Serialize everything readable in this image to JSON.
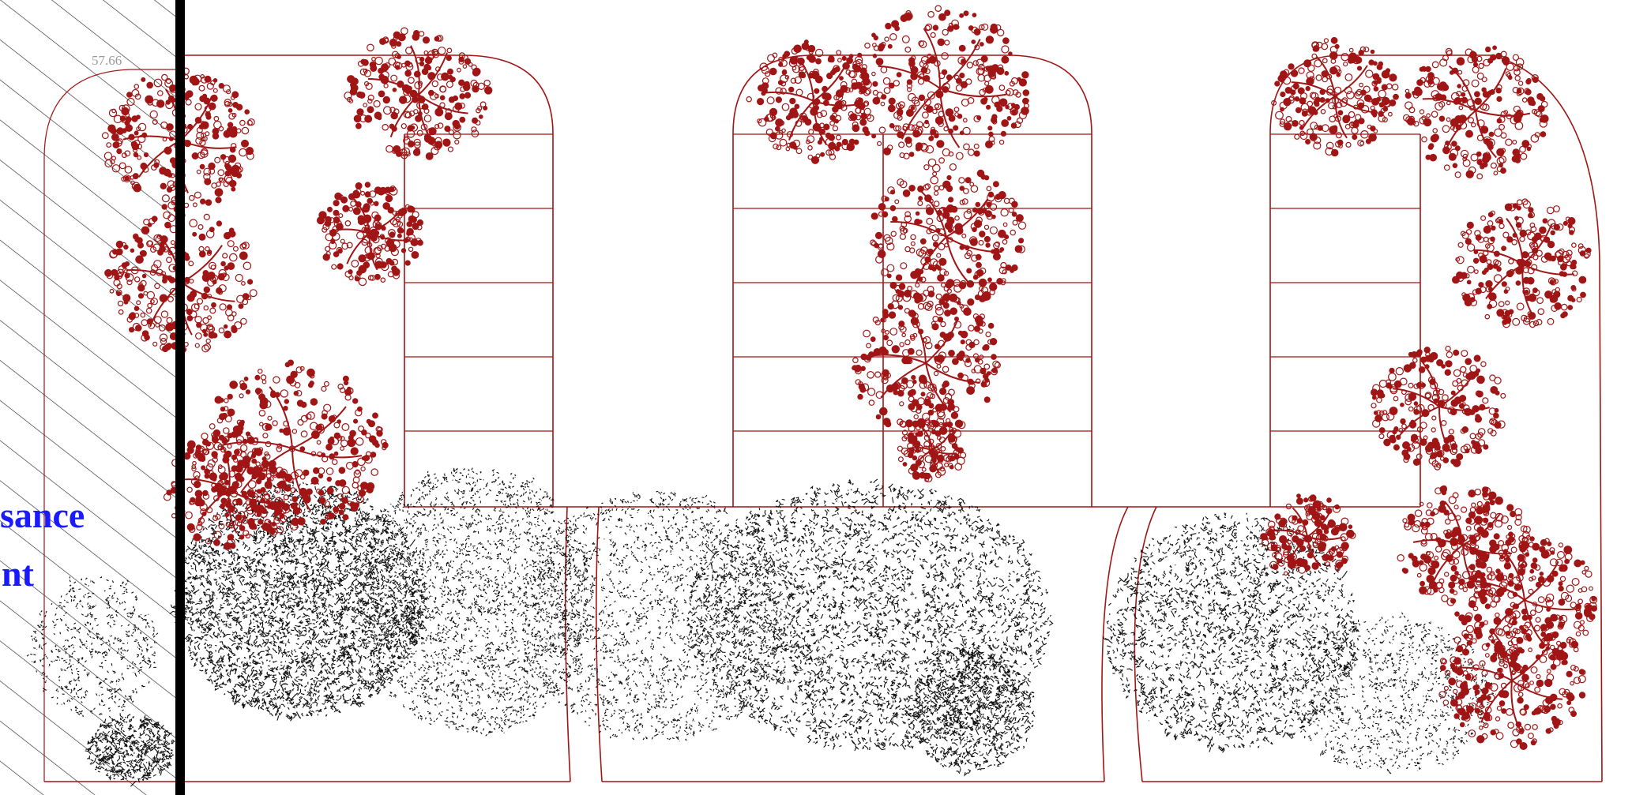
{
  "labels": {
    "spot_elevation": "57.66",
    "side_text_line1": "sance",
    "side_text_line2": "nt"
  },
  "colors": {
    "tree_red": "#a01515",
    "shrub_black": "#111111",
    "label_blue": "#1a1aff",
    "elevation_grey": "#9a9a9a",
    "wall_black": "#000000"
  },
  "icons": {
    "red_tree_canopy": "red-tree-canopy-icon",
    "black_shrub_mass": "black-shrub-mass-icon",
    "hatch_zone": "diagonal-hatch-pattern"
  },
  "stalls": {
    "column_1": 5,
    "column_2": 5,
    "column_3": 5,
    "column_4": 5,
    "column_5": 5
  }
}
